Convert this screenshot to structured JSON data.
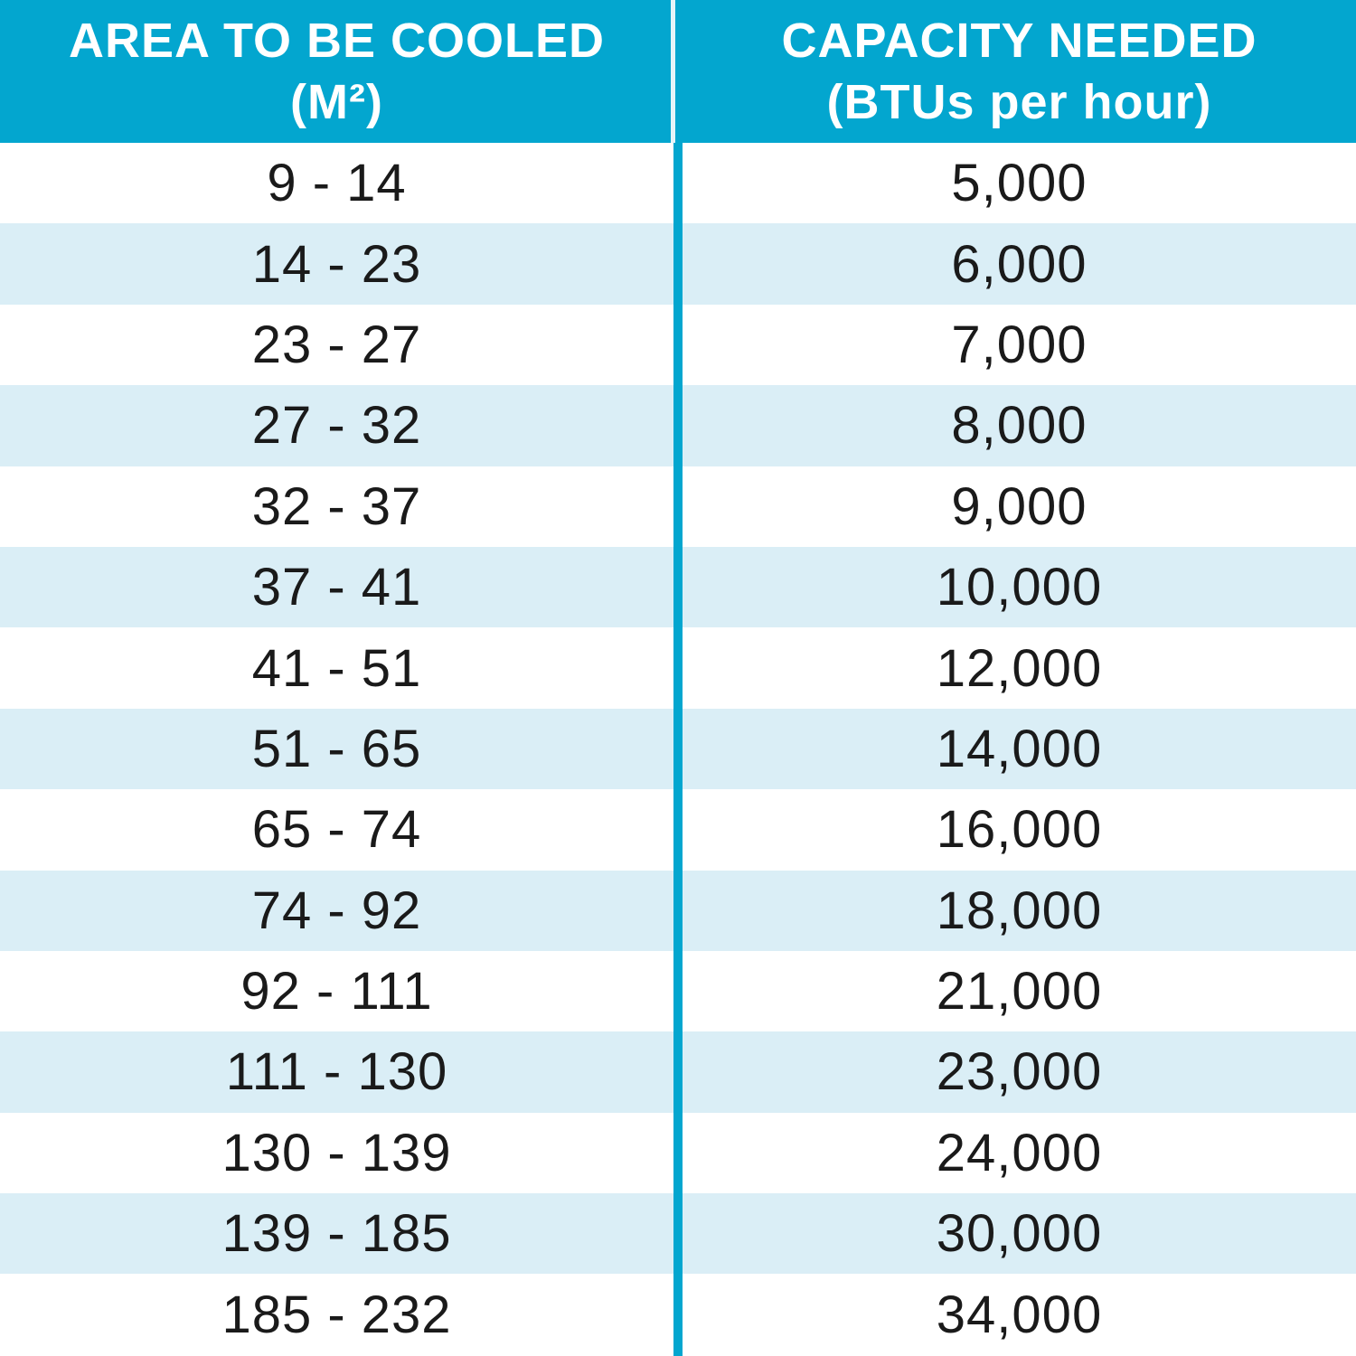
{
  "header": {
    "area_line1": "AREA TO BE COOLED",
    "area_line2": "(M²)",
    "capacity_line1": "CAPACITY NEEDED",
    "capacity_line2": "(BTUs per hour)"
  },
  "colors": {
    "header_background": "#03a6cf",
    "alternate_row": "#daeef6",
    "text": "#1a1a1a"
  },
  "rows": [
    {
      "area": "9 - 14",
      "capacity": "5,000"
    },
    {
      "area": "14 - 23",
      "capacity": "6,000"
    },
    {
      "area": "23 - 27",
      "capacity": "7,000"
    },
    {
      "area": "27 - 32",
      "capacity": "8,000"
    },
    {
      "area": "32 - 37",
      "capacity": "9,000"
    },
    {
      "area": "37 - 41",
      "capacity": "10,000"
    },
    {
      "area": "41 - 51",
      "capacity": "12,000"
    },
    {
      "area": "51 - 65",
      "capacity": "14,000"
    },
    {
      "area": "65 - 74",
      "capacity": "16,000"
    },
    {
      "area": "74 - 92",
      "capacity": "18,000"
    },
    {
      "area": "92 - 111",
      "capacity": "21,000"
    },
    {
      "area": "111 - 130",
      "capacity": "23,000"
    },
    {
      "area": "130 - 139",
      "capacity": "24,000"
    },
    {
      "area": "139 - 185",
      "capacity": "30,000"
    },
    {
      "area": "185 - 232",
      "capacity": "34,000"
    }
  ]
}
